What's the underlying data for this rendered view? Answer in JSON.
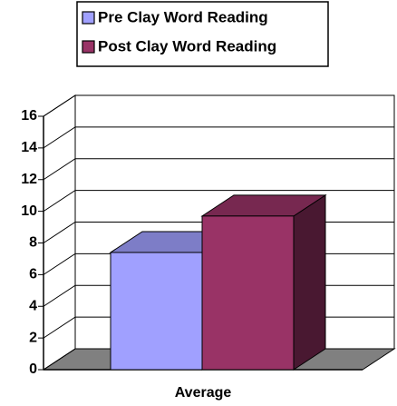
{
  "chart_data": {
    "type": "bar3d",
    "categories": [
      "Average"
    ],
    "series": [
      {
        "name": "Pre Clay Word Reading",
        "color": "#a0a0ff",
        "values": [
          7.4
        ]
      },
      {
        "name": "Post Clay Word Reading",
        "color": "#993366",
        "values": [
          9.7
        ]
      }
    ],
    "ylim": [
      0,
      16
    ],
    "yticks": [
      0,
      2,
      4,
      6,
      8,
      10,
      12,
      14,
      16
    ],
    "grid": true,
    "legend": "top"
  }
}
